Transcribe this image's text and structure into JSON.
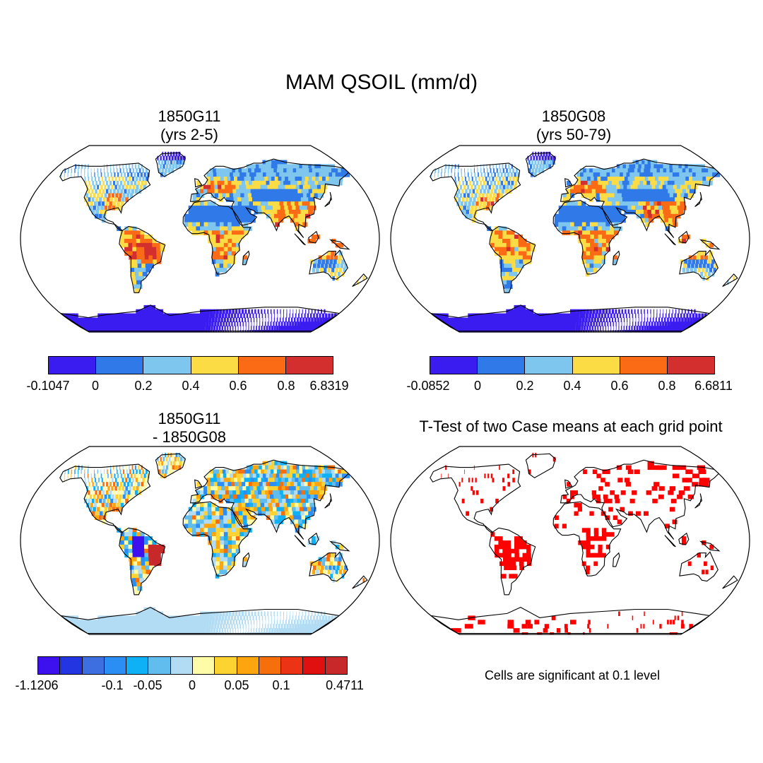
{
  "title": "MAM QSOIL (mm/d)",
  "panels": [
    {
      "id": "p1",
      "title": "1850G11\n(yrs 2-5)",
      "colorbar": {
        "colors": [
          "#3b1cf0",
          "#2f7ae8",
          "#7ec6ee",
          "#fcdc45",
          "#fb6a14",
          "#d22f2e"
        ],
        "labels": [
          "-0.1047",
          "0",
          "0.2",
          "0.4",
          "0.6",
          "0.8",
          "6.8319"
        ]
      }
    },
    {
      "id": "p2",
      "title": "1850G08\n(yrs 50-79)",
      "colorbar": {
        "colors": [
          "#3b1cf0",
          "#2f7ae8",
          "#7ec6ee",
          "#fcdc45",
          "#fb6a14",
          "#d22f2e"
        ],
        "labels": [
          "-0.0852",
          "0",
          "0.2",
          "0.4",
          "0.6",
          "0.8",
          "6.6811"
        ]
      }
    },
    {
      "id": "p3",
      "title": "1850G11\n- 1850G08",
      "colorbar": {
        "colors": [
          "#3d10ee",
          "#2335e0",
          "#3e6fe0",
          "#2a8ef4",
          "#0fb1f6",
          "#61bded",
          "#b2dcf3",
          "#fffca8",
          "#fdd332",
          "#fca50e",
          "#f76f0b",
          "#ec3315",
          "#e00f10",
          "#c72829"
        ],
        "labels": [
          "-1.1206",
          "-0.1",
          "-0.05",
          "0",
          "0.05",
          "0.1",
          "0.4711"
        ]
      }
    },
    {
      "id": "p4",
      "title": "T-Test of two Case means at each grid point",
      "note": "Cells are significant at 0.1 level",
      "color": "#ff0000"
    }
  ]
}
